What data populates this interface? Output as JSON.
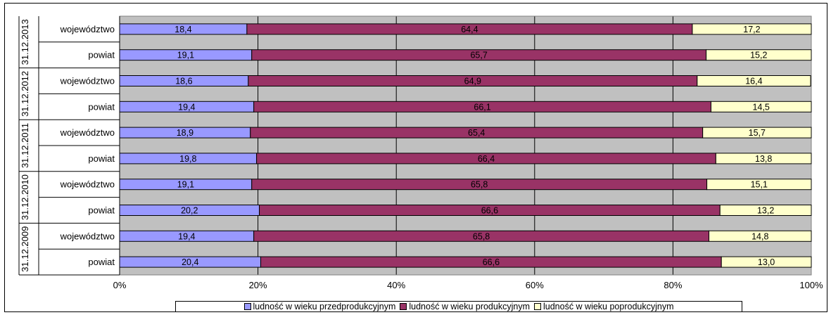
{
  "chart_data": {
    "type": "bar",
    "orientation": "horizontal",
    "stacked": "percent",
    "groups": [
      {
        "label": "31.12.2013",
        "categories": [
          "województwo",
          "powiat"
        ]
      },
      {
        "label": "31.12.2012",
        "categories": [
          "województwo",
          "powiat"
        ]
      },
      {
        "label": "31.12.2011",
        "categories": [
          "województwo",
          "powiat"
        ]
      },
      {
        "label": "31.12.2010",
        "categories": [
          "województwo",
          "powiat"
        ]
      },
      {
        "label": "31.12.2009",
        "categories": [
          "województwo",
          "powiat"
        ]
      }
    ],
    "series": [
      {
        "name": "ludność w wieku przedprodukcyjnym",
        "color": "#9999ff",
        "values": [
          "18,4",
          "19,1",
          "18,6",
          "19,4",
          "18,9",
          "19,8",
          "19,1",
          "20,2",
          "19,4",
          "20,4"
        ]
      },
      {
        "name": "ludność w wieku produkcyjnym",
        "color": "#993366",
        "values": [
          "64,4",
          "65,7",
          "64,9",
          "66,1",
          "65,4",
          "66,4",
          "65,8",
          "66,6",
          "65,8",
          "66,6"
        ]
      },
      {
        "name": "ludność w wieku poprodukcyjnym",
        "color": "#ffffcc",
        "values": [
          "17,2",
          "15,2",
          "16,4",
          "14,5",
          "15,7",
          "13,8",
          "15,1",
          "13,2",
          "14,8",
          "13,0"
        ]
      }
    ],
    "x_ticks": [
      "0%",
      "20%",
      "40%",
      "60%",
      "80%",
      "100%"
    ],
    "xlim": [
      0,
      100
    ],
    "grid": true,
    "plot_background": "#c0c0c0",
    "legend_position": "bottom"
  }
}
